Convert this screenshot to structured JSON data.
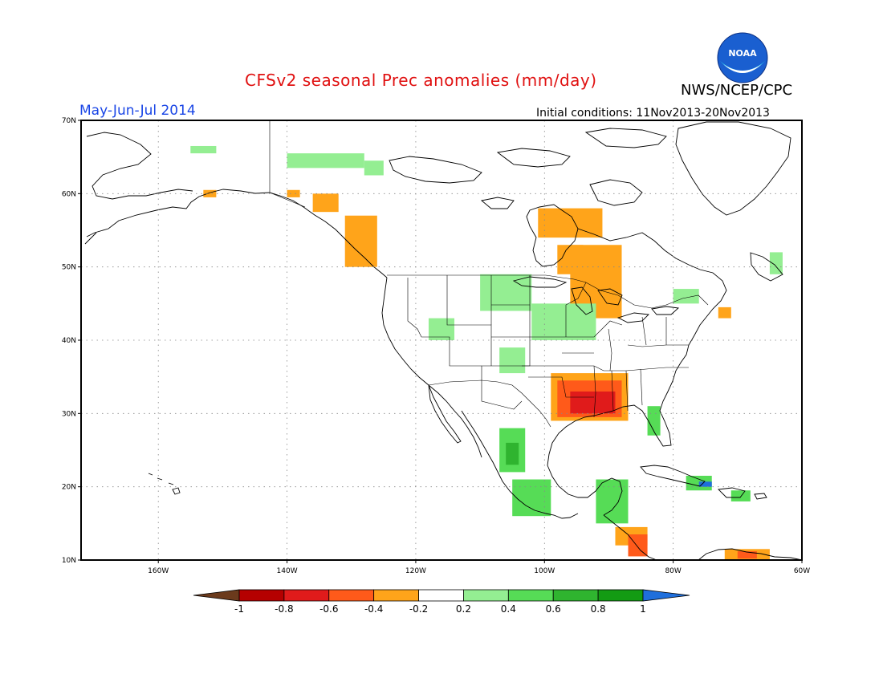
{
  "header": {
    "title": "CFSv2 seasonal Prec anomalies (mm/day)",
    "org": "NWS/NCEP/CPC",
    "period": "May-Jun-Jul 2014",
    "initial_conditions": "Initial conditions: 11Nov2013-20Nov2013",
    "logo_text": "NOAA"
  },
  "map": {
    "projection": "lat-lon",
    "lon_range": [
      -172,
      -60
    ],
    "lat_range": [
      10,
      70
    ],
    "x_ticks": [
      "160W",
      "140W",
      "120W",
      "100W",
      "80W",
      "60W"
    ],
    "y_ticks": [
      "70N",
      "60N",
      "50N",
      "40N",
      "30N",
      "20N",
      "10N"
    ],
    "grid": "dotted"
  },
  "colorbar": {
    "labels": [
      "-1",
      "-0.8",
      "-0.6",
      "-0.4",
      "-0.2",
      "0.2",
      "0.4",
      "0.6",
      "0.8",
      "1"
    ],
    "colors": [
      "#6b3a1c",
      "#b50000",
      "#e01b1b",
      "#ff5a1a",
      "#ffa41a",
      "#ffffff",
      "#94ee92",
      "#56dc56",
      "#2fb42f",
      "#139b13",
      "#1f6fdc"
    ]
  },
  "anomaly_regions": [
    {
      "level": "0.2",
      "color": "#94ee92",
      "lon": [
        -155,
        -151
      ],
      "lat": [
        65.5,
        66.5
      ]
    },
    {
      "level": "0.2",
      "color": "#94ee92",
      "lon": [
        -140,
        -128
      ],
      "lat": [
        63.5,
        65.5
      ]
    },
    {
      "level": "0.2",
      "color": "#94ee92",
      "lon": [
        -128,
        -125
      ],
      "lat": [
        62.5,
        64.5
      ]
    },
    {
      "level": "-0.4",
      "color": "#ffa41a",
      "lon": [
        -140,
        -138
      ],
      "lat": [
        59.5,
        60.5
      ]
    },
    {
      "level": "-0.4",
      "color": "#ffa41a",
      "lon": [
        -136,
        -132
      ],
      "lat": [
        57.5,
        60
      ]
    },
    {
      "level": "-0.4",
      "color": "#ffa41a",
      "lon": [
        -131,
        -126
      ],
      "lat": [
        50,
        57
      ]
    },
    {
      "level": "-0.4",
      "color": "#ffa41a",
      "lon": [
        -153,
        -151
      ],
      "lat": [
        59.5,
        60.5
      ]
    },
    {
      "level": "-0.4",
      "color": "#ffa41a",
      "lon": [
        -101,
        -91
      ],
      "lat": [
        54,
        58
      ]
    },
    {
      "level": "-0.4",
      "color": "#ffa41a",
      "lon": [
        -96,
        -88
      ],
      "lat": [
        43,
        53
      ]
    },
    {
      "level": "-0.4",
      "color": "#ffa41a",
      "lon": [
        -98,
        -94
      ],
      "lat": [
        49,
        53
      ]
    },
    {
      "level": "0.2",
      "color": "#94ee92",
      "lon": [
        -110,
        -102
      ],
      "lat": [
        44,
        49
      ]
    },
    {
      "level": "0.2",
      "color": "#94ee92",
      "lon": [
        -102,
        -92
      ],
      "lat": [
        40,
        45
      ]
    },
    {
      "level": "0.2",
      "color": "#94ee92",
      "lon": [
        -118,
        -114
      ],
      "lat": [
        40,
        43
      ]
    },
    {
      "level": "0.2",
      "color": "#94ee92",
      "lon": [
        -107,
        -103
      ],
      "lat": [
        35.5,
        39
      ]
    },
    {
      "level": "-0.4",
      "color": "#ffa41a",
      "lon": [
        -99,
        -87
      ],
      "lat": [
        29,
        35.5
      ]
    },
    {
      "level": "-0.6",
      "color": "#ff5a1a",
      "lon": [
        -98,
        -88
      ],
      "lat": [
        29.5,
        34.5
      ]
    },
    {
      "level": "-0.8",
      "color": "#e01b1b",
      "lon": [
        -96,
        -89
      ],
      "lat": [
        30,
        33
      ]
    },
    {
      "level": "0.4",
      "color": "#56dc56",
      "lon": [
        -107,
        -103
      ],
      "lat": [
        22,
        28
      ]
    },
    {
      "level": "0.6",
      "color": "#2fb42f",
      "lon": [
        -106,
        -104
      ],
      "lat": [
        23,
        26
      ]
    },
    {
      "level": "0.4",
      "color": "#56dc56",
      "lon": [
        -105,
        -99
      ],
      "lat": [
        16,
        21
      ]
    },
    {
      "level": "0.4",
      "color": "#56dc56",
      "lon": [
        -92,
        -87
      ],
      "lat": [
        15,
        21
      ]
    },
    {
      "level": "-0.4",
      "color": "#ffa41a",
      "lon": [
        -89,
        -84
      ],
      "lat": [
        12,
        14.5
      ]
    },
    {
      "level": "-0.6",
      "color": "#ff5a1a",
      "lon": [
        -87,
        -84
      ],
      "lat": [
        10.5,
        13.5
      ]
    },
    {
      "level": "0.4",
      "color": "#56dc56",
      "lon": [
        -84,
        -82
      ],
      "lat": [
        27,
        31
      ]
    },
    {
      "level": "0.4",
      "color": "#56dc56",
      "lon": [
        -78,
        -74
      ],
      "lat": [
        19.5,
        21.5
      ]
    },
    {
      "level": "1",
      "color": "#1f6fdc",
      "lon": [
        -76,
        -74
      ],
      "lat": [
        20,
        20.7
      ]
    },
    {
      "level": "0.4",
      "color": "#56dc56",
      "lon": [
        -71,
        -68
      ],
      "lat": [
        18,
        19.5
      ]
    },
    {
      "level": "-0.4",
      "color": "#ffa41a",
      "lon": [
        -72,
        -65
      ],
      "lat": [
        10,
        11.5
      ]
    },
    {
      "level": "-0.6",
      "color": "#ff5a1a",
      "lon": [
        -70,
        -67
      ],
      "lat": [
        10.2,
        11.2
      ]
    },
    {
      "level": "0.2",
      "color": "#94ee92",
      "lon": [
        -65,
        -63
      ],
      "lat": [
        49,
        52
      ]
    },
    {
      "level": "-0.4",
      "color": "#ffa41a",
      "lon": [
        -73,
        -71
      ],
      "lat": [
        43,
        44.5
      ]
    },
    {
      "level": "0.2",
      "color": "#94ee92",
      "lon": [
        -80,
        -76
      ],
      "lat": [
        45,
        47
      ]
    }
  ]
}
